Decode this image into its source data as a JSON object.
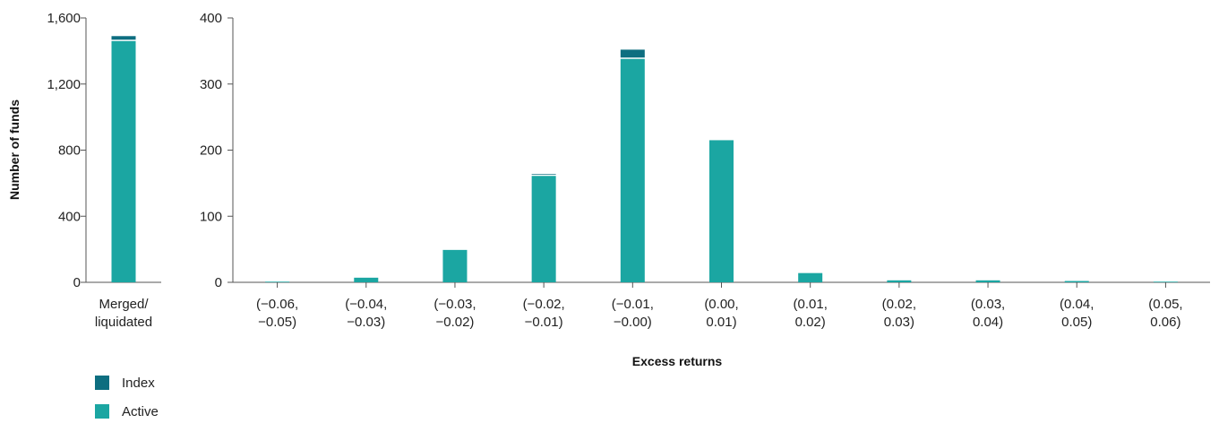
{
  "chart_data": [
    {
      "type": "bar",
      "stacked": true,
      "categories": [
        "Merged/\nliquidated"
      ],
      "ylim": [
        0,
        1600
      ],
      "yticks": [
        "0",
        "400",
        "800",
        "1,200",
        "1,600"
      ],
      "ylabel": "Number of funds",
      "series": [
        {
          "name": "Active",
          "values": [
            1460
          ]
        },
        {
          "name": "Index",
          "values": [
            30
          ]
        }
      ]
    },
    {
      "type": "bar",
      "stacked": true,
      "categories": [
        "(−0.06,\n−0.05)",
        "(−0.04,\n−0.03)",
        "(−0.03,\n−0.02)",
        "(−0.02,\n−0.01)",
        "(−0.01,\n−0.00)",
        "(0.00,\n0.01)",
        "(0.01,\n0.02)",
        "(0.02,\n0.03)",
        "(0.03,\n0.04)",
        "(0.04,\n0.05)",
        "(0.05,\n0.06)"
      ],
      "ylim": [
        0,
        400
      ],
      "yticks": [
        "0",
        "100",
        "200",
        "300",
        "400"
      ],
      "xlabel": "Excess returns",
      "series": [
        {
          "name": "Active",
          "values": [
            1,
            7,
            49,
            161,
            338,
            215,
            14,
            3,
            3,
            2,
            1
          ]
        },
        {
          "name": "Index",
          "values": [
            0,
            0,
            0,
            3,
            14,
            0,
            0,
            0,
            0,
            0,
            0
          ]
        }
      ]
    }
  ],
  "legend": [
    {
      "label": "Index",
      "color": "#0d6e80"
    },
    {
      "label": "Active",
      "color": "#1ba6a2"
    }
  ],
  "colors": {
    "active": "#1ba6a2",
    "index": "#0d6e80",
    "axis": "#555555"
  }
}
